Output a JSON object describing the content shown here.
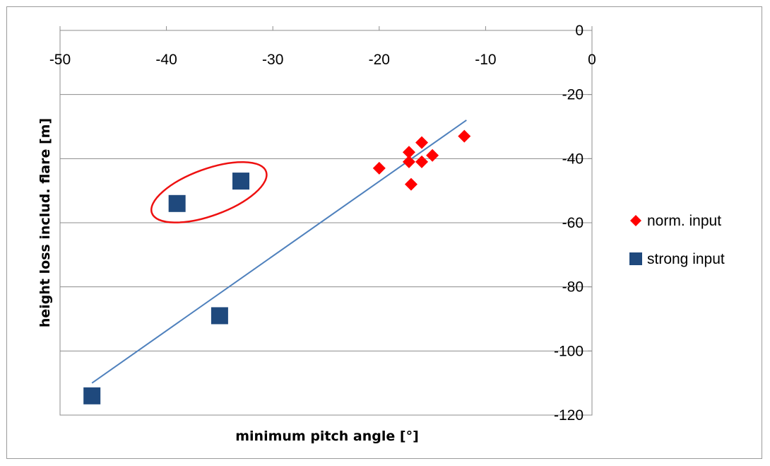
{
  "chart_data": {
    "type": "scatter",
    "xlabel": "minimum pitch angle [°]",
    "ylabel": "height loss includ. flare [m]",
    "xlim": [
      -50,
      0
    ],
    "ylim": [
      -120,
      0
    ],
    "x_ticks": [
      -50,
      -40,
      -30,
      -20,
      -10,
      0
    ],
    "y_ticks": [
      0,
      -20,
      -40,
      -60,
      -80,
      -100,
      -120
    ],
    "x_axis_position": "top",
    "y_axis_position": "right",
    "grid": "horizontal",
    "legend_position": "right",
    "series": [
      {
        "name": "norm. input",
        "marker": "diamond",
        "color": "#ff0000",
        "points": [
          {
            "x": -20,
            "y": -43
          },
          {
            "x": -17,
            "y": -48
          },
          {
            "x": -17.2,
            "y": -38
          },
          {
            "x": -17.2,
            "y": -41
          },
          {
            "x": -16,
            "y": -35
          },
          {
            "x": -16,
            "y": -41
          },
          {
            "x": -15,
            "y": -39
          },
          {
            "x": -12,
            "y": -33
          }
        ]
      },
      {
        "name": "strong input",
        "marker": "square",
        "color": "#1f497d",
        "points": [
          {
            "x": -39,
            "y": -54
          },
          {
            "x": -33,
            "y": -47
          },
          {
            "x": -35,
            "y": -89
          },
          {
            "x": -47,
            "y": -114
          }
        ]
      }
    ],
    "trendline": {
      "color": "#4f81bd",
      "x": [
        -47,
        -11.8
      ],
      "y": [
        -110,
        -28
      ]
    },
    "annotations": [
      {
        "type": "ellipse",
        "color": "#ee1111",
        "encloses": "strong input points at x=-39 and x=-33"
      }
    ]
  }
}
